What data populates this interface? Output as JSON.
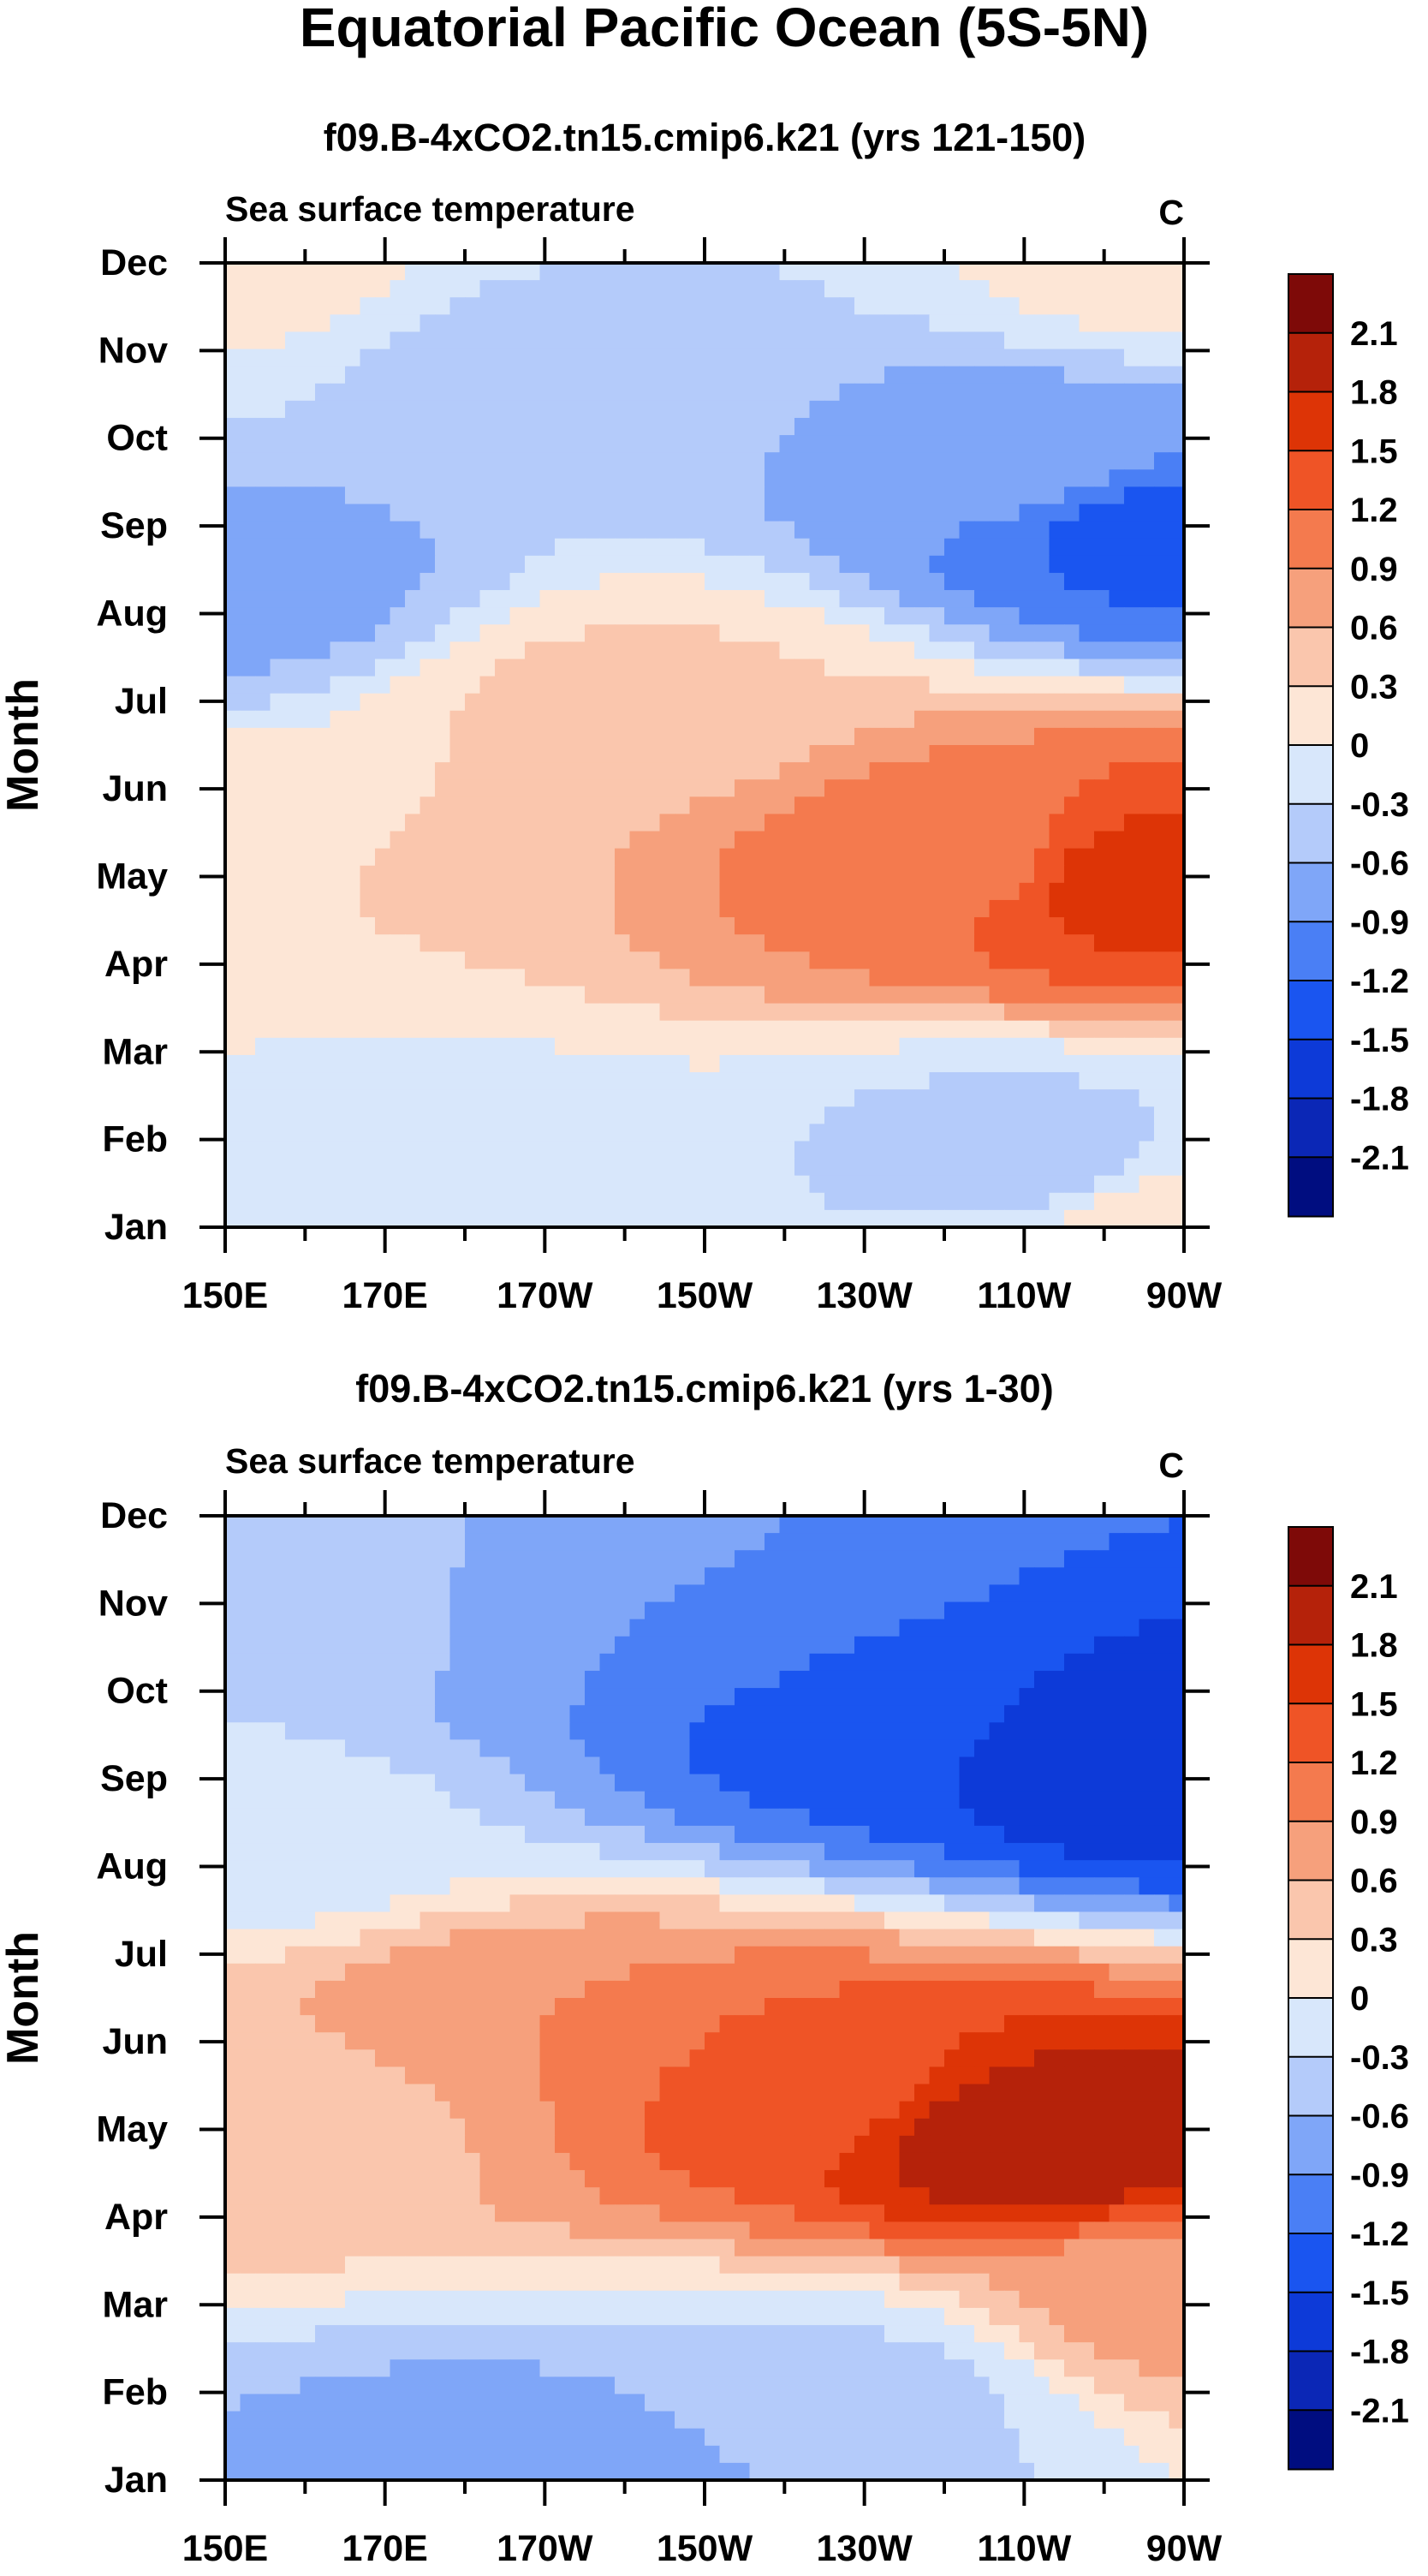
{
  "figure": {
    "title": "Equatorial Pacific Ocean (5S-5N)"
  },
  "chart_data": [
    {
      "type": "heatmap",
      "title": "f09.B-4xCO2.tn15.cmip6.k21 (yrs 121-150)",
      "subtitle_left": "Sea surface temperature",
      "subtitle_right": "C",
      "ylabel": "Month",
      "xlabel": "",
      "x_ticks": [
        "150E",
        "170E",
        "170W",
        "150W",
        "130W",
        "110W",
        "90W"
      ],
      "x_range_deg_east": [
        150,
        270
      ],
      "y_ticks": [
        "Jan",
        "Feb",
        "Mar",
        "Apr",
        "May",
        "Jun",
        "Jul",
        "Aug",
        "Sep",
        "Oct",
        "Nov",
        "Dec"
      ],
      "grid": false,
      "colorbar_levels": [
        -2.1,
        -1.8,
        -1.5,
        -1.2,
        -0.9,
        -0.6,
        -0.3,
        0,
        0.3,
        0.6,
        0.9,
        1.2,
        1.5,
        1.8,
        2.1
      ],
      "colorbar_labels": [
        "2.1",
        "1.8",
        "1.5",
        "1.2",
        "0.9",
        "0.6",
        "0.3",
        "0",
        "-0.3",
        "-0.6",
        "-0.9",
        "-1.2",
        "-1.5",
        "-1.8",
        "-2.1"
      ],
      "colorbar_colors": [
        "#000d80",
        "#0b27b6",
        "#0d3ad8",
        "#1a55f0",
        "#4a7ff5",
        "#7fa6f8",
        "#b4cbfa",
        "#d8e7fb",
        "#fde6d6",
        "#fac6ad",
        "#f6a07c",
        "#f47a4e",
        "#ef5426",
        "#dd3406",
        "#b5220a",
        "#7e0a08"
      ],
      "contour_peaks": [
        {
          "name": "warm core (May, ~95W)",
          "lon_deg_east": 265,
          "month": 5.0,
          "value": 1.6
        },
        {
          "name": "warm tongue (May-Jun, ~120W)",
          "lon_deg_east": 240,
          "month": 5.3,
          "value": 1.0
        },
        {
          "name": "cold core (Sep, ~92W)",
          "lon_deg_east": 268,
          "month": 9.0,
          "value": -1.3
        },
        {
          "name": "cold band (Oct, ~110W)",
          "lon_deg_east": 250,
          "month": 9.8,
          "value": -0.7
        },
        {
          "name": "cool band (Nov, 170W)",
          "lon_deg_east": 190,
          "month": 10.8,
          "value": -0.4
        },
        {
          "name": "cool patch (Feb, 110W)",
          "lon_deg_east": 250,
          "month": 1.8,
          "value": -0.4
        },
        {
          "name": "cool region (Feb, 170E)",
          "lon_deg_east": 175,
          "month": 1.6,
          "value": -0.15
        },
        {
          "name": "west Aug cool (152E)",
          "lon_deg_east": 152,
          "month": 8.3,
          "value": -0.7
        },
        {
          "name": "warm band (Jul, 160W)",
          "lon_deg_east": 200,
          "month": 7.0,
          "value": 0.35
        },
        {
          "name": "west warm (May, 155E)",
          "lon_deg_east": 155,
          "month": 5.2,
          "value": 0.3
        },
        {
          "name": "Dec west warm",
          "lon_deg_east": 150,
          "month": 12.0,
          "value": 0.1
        },
        {
          "name": "Dec east warm",
          "lon_deg_east": 270,
          "month": 12.0,
          "value": 0.1
        },
        {
          "name": "Jan east warm",
          "lon_deg_east": 270,
          "month": 1.0,
          "value": 0.2
        }
      ]
    },
    {
      "type": "heatmap",
      "title": "f09.B-4xCO2.tn15.cmip6.k21 (yrs 1-30)",
      "subtitle_left": "Sea surface temperature",
      "subtitle_right": "C",
      "ylabel": "Month",
      "xlabel": "",
      "x_ticks": [
        "150E",
        "170E",
        "170W",
        "150W",
        "130W",
        "110W",
        "90W"
      ],
      "x_range_deg_east": [
        150,
        270
      ],
      "y_ticks": [
        "Jan",
        "Feb",
        "Mar",
        "Apr",
        "May",
        "Jun",
        "Jul",
        "Aug",
        "Sep",
        "Oct",
        "Nov",
        "Dec"
      ],
      "grid": false,
      "colorbar_levels": [
        -2.1,
        -1.8,
        -1.5,
        -1.2,
        -0.9,
        -0.6,
        -0.3,
        0,
        0.3,
        0.6,
        0.9,
        1.2,
        1.5,
        1.8,
        2.1
      ],
      "colorbar_labels": [
        "2.1",
        "1.8",
        "1.5",
        "1.2",
        "0.9",
        "0.6",
        "0.3",
        "0",
        "-0.3",
        "-0.6",
        "-0.9",
        "-1.2",
        "-1.5",
        "-1.8",
        "-2.1"
      ],
      "colorbar_colors": [
        "#000d80",
        "#0b27b6",
        "#0d3ad8",
        "#1a55f0",
        "#4a7ff5",
        "#7fa6f8",
        "#b4cbfa",
        "#d8e7fb",
        "#fde6d6",
        "#fac6ad",
        "#f6a07c",
        "#f47a4e",
        "#ef5426",
        "#dd3406",
        "#b5220a",
        "#7e0a08"
      ],
      "contour_peaks": [
        {
          "name": "warm core (May, ~110W)",
          "lon_deg_east": 252,
          "month": 4.9,
          "value": 2.0
        },
        {
          "name": "warm tongue (May-Jun, 140W)",
          "lon_deg_east": 220,
          "month": 5.5,
          "value": 1.35
        },
        {
          "name": "warm band (Jun, 170W)",
          "lon_deg_east": 190,
          "month": 6.0,
          "value": 0.9
        },
        {
          "name": "warm west (May, 160E)",
          "lon_deg_east": 160,
          "month": 5.2,
          "value": 0.45
        },
        {
          "name": "cold core (Sep-Oct, ~95W)",
          "lon_deg_east": 266,
          "month": 9.3,
          "value": -1.75
        },
        {
          "name": "cold band (Oct, ~130W)",
          "lon_deg_east": 230,
          "month": 9.8,
          "value": -1.4
        },
        {
          "name": "cold band (Nov, 150W)",
          "lon_deg_east": 210,
          "month": 10.6,
          "value": -1.0
        },
        {
          "name": "cool band (Nov, 170W)",
          "lon_deg_east": 190,
          "month": 11.0,
          "value": -0.7
        },
        {
          "name": "cool west (Nov, 165E)",
          "lon_deg_east": 165,
          "month": 11.0,
          "value": -0.4
        },
        {
          "name": "west edge cool (Sep)",
          "lon_deg_east": 151,
          "month": 8.5,
          "value": -0.2
        },
        {
          "name": "Jan cool (170W)",
          "lon_deg_east": 190,
          "month": 1.0,
          "value": -0.85
        },
        {
          "name": "Jan cool (150W)",
          "lon_deg_east": 210,
          "month": 1.3,
          "value": -0.6
        },
        {
          "name": "Feb cool (130W)",
          "lon_deg_east": 230,
          "month": 2.0,
          "value": -0.35
        },
        {
          "name": "Mar warm east (90W)",
          "lon_deg_east": 270,
          "month": 3.0,
          "value": 0.7
        }
      ]
    }
  ]
}
